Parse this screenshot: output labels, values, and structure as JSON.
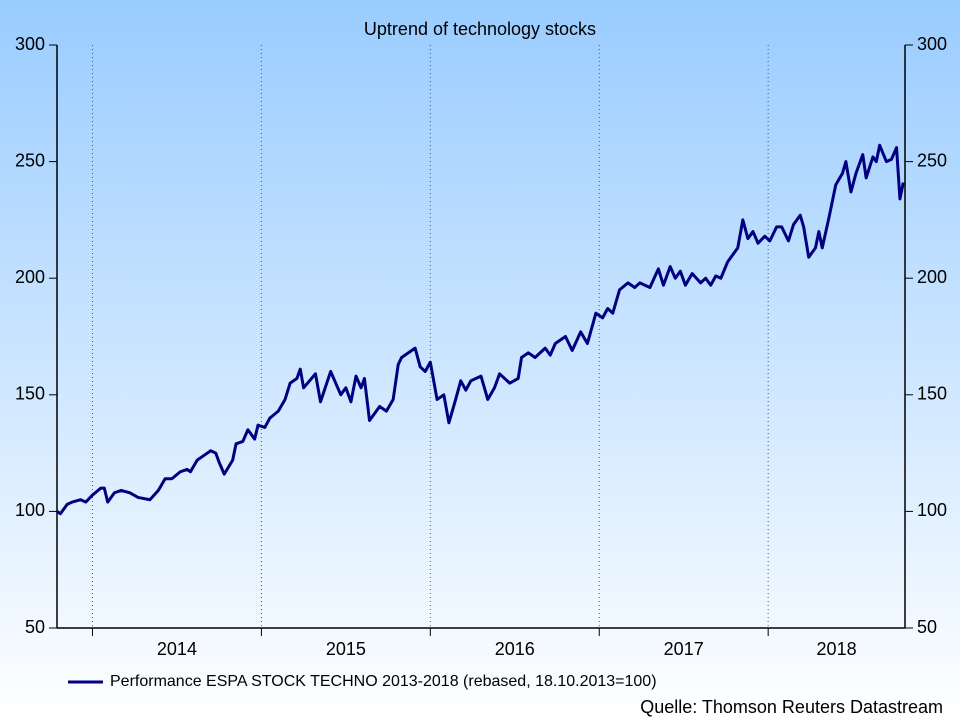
{
  "chart_data": {
    "type": "line",
    "title": "Uptrend of technology stocks",
    "source": "Quelle: Thomson Reuters Datastream",
    "x": [
      2013.79,
      2013.81,
      2013.85,
      2013.88,
      2013.93,
      2013.96,
      2014.0,
      2014.05,
      2014.07,
      2014.09,
      2014.13,
      2014.17,
      2014.22,
      2014.27,
      2014.34,
      2014.39,
      2014.43,
      2014.47,
      2014.52,
      2014.56,
      2014.58,
      2014.62,
      2014.66,
      2014.7,
      2014.73,
      2014.75,
      2014.78,
      2014.83,
      2014.85,
      2014.89,
      2014.92,
      2014.96,
      2014.98,
      2015.02,
      2015.05,
      2015.1,
      2015.14,
      2015.17,
      2015.21,
      2015.23,
      2015.25,
      2015.32,
      2015.35,
      2015.41,
      2015.47,
      2015.5,
      2015.53,
      2015.56,
      2015.59,
      2015.61,
      2015.64,
      2015.7,
      2015.74,
      2015.78,
      2015.81,
      2015.83,
      2015.91,
      2015.94,
      2015.97,
      2016.0,
      2016.04,
      2016.08,
      2016.11,
      2016.15,
      2016.18,
      2016.21,
      2016.24,
      2016.3,
      2016.34,
      2016.38,
      2016.41,
      2016.47,
      2016.52,
      2016.54,
      2016.58,
      2016.62,
      2016.68,
      2016.71,
      2016.74,
      2016.8,
      2016.84,
      2016.89,
      2016.93,
      2016.98,
      2017.02,
      2017.05,
      2017.08,
      2017.12,
      2017.17,
      2017.21,
      2017.24,
      2017.3,
      2017.35,
      2017.38,
      2017.42,
      2017.45,
      2017.48,
      2017.51,
      2017.55,
      2017.6,
      2017.63,
      2017.66,
      2017.69,
      2017.72,
      2017.76,
      2017.82,
      2017.85,
      2017.88,
      2017.91,
      2017.94,
      2017.98,
      2018.01,
      2018.05,
      2018.08,
      2018.12,
      2018.15,
      2018.19,
      2018.21,
      2018.24,
      2018.28,
      2018.3,
      2018.32,
      2018.36,
      2018.4,
      2018.44,
      2018.46,
      2018.49,
      2018.52,
      2018.56,
      2018.58,
      2018.62,
      2018.64,
      2018.66,
      2018.7,
      2018.73,
      2018.76,
      2018.78,
      2018.8
    ],
    "series": [
      {
        "name": "Performance ESPA STOCK TECHNO 2013-2018 (rebased, 18.10.2013=100)",
        "color": "#000080",
        "values": [
          100,
          99,
          103,
          104,
          105,
          104,
          107,
          110,
          110,
          104,
          108,
          109,
          108,
          106,
          105,
          109,
          114,
          114,
          117,
          118,
          117,
          122,
          124,
          126,
          125,
          121,
          116,
          122,
          129,
          130,
          135,
          131,
          137,
          136,
          140,
          143,
          148,
          155,
          157,
          161,
          153,
          159,
          147,
          160,
          150,
          153,
          147,
          158,
          153,
          157,
          139,
          145,
          143,
          148,
          163,
          166,
          170,
          162,
          160,
          164,
          148,
          150,
          138,
          148,
          156,
          152,
          156,
          158,
          148,
          153,
          159,
          155,
          157,
          166,
          168,
          166,
          170,
          167,
          172,
          175,
          169,
          177,
          172,
          185,
          183,
          187,
          185,
          195,
          198,
          196,
          198,
          196,
          204,
          197,
          205,
          200,
          203,
          197,
          202,
          198,
          200,
          197,
          201,
          200,
          207,
          213,
          225,
          217,
          220,
          215,
          218,
          216,
          222,
          222,
          216,
          223,
          227,
          222,
          209,
          213,
          220,
          213,
          226,
          240,
          245,
          250,
          237,
          245,
          253,
          243,
          252,
          250,
          257,
          250,
          251,
          256,
          234,
          241
        ]
      }
    ],
    "xlim": [
      2013.79,
      2018.81
    ],
    "xticks": [
      {
        "value": 2014,
        "label": "2014"
      },
      {
        "value": 2015,
        "label": "2015"
      },
      {
        "value": 2016,
        "label": "2016"
      },
      {
        "value": 2017,
        "label": "2017"
      },
      {
        "value": 2018,
        "label": "2018"
      }
    ],
    "ylim": [
      50,
      300
    ],
    "yticks": [
      50,
      100,
      150,
      200,
      250,
      300
    ],
    "y2lim": [
      50,
      300
    ],
    "y2ticks": [
      50,
      100,
      150,
      200,
      250,
      300
    ],
    "grid": "x",
    "legend": "bottom-left"
  }
}
